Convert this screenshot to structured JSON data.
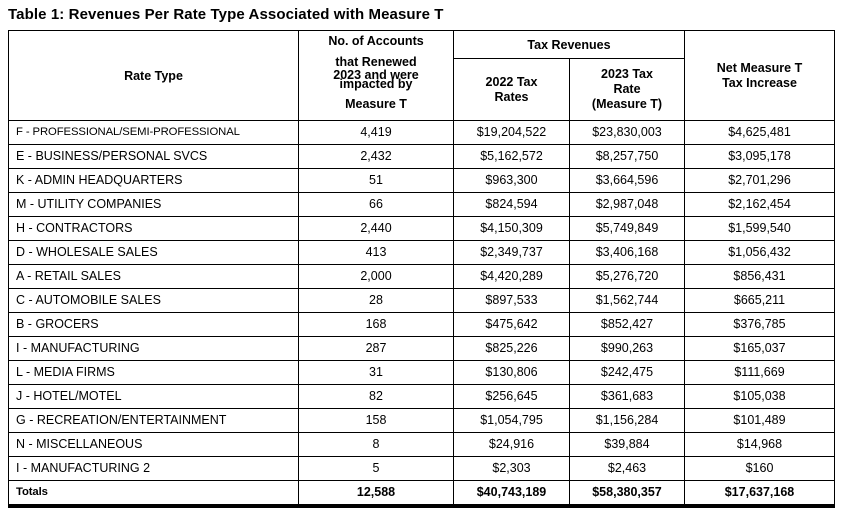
{
  "title": "Table 1: Revenues Per Rate Type Associated with Measure T",
  "colors": {
    "background": "#ffffff",
    "text": "#000000",
    "border": "#000000"
  },
  "table": {
    "headers": {
      "rate_type": "Rate Type",
      "accounts_lines": [
        "No. of Accounts",
        "that Renewed",
        "2023 and were",
        "impacted by",
        "Measure T"
      ],
      "tax_revenues_group": "Tax Revenues",
      "tax_2022_lines": [
        "2022 Tax",
        "Rates"
      ],
      "tax_2023_lines": [
        "2023 Tax",
        "Rate",
        "(Measure T)"
      ],
      "net_increase_lines": [
        "Net Measure T",
        "Tax Increase"
      ]
    },
    "rows": [
      {
        "rate_type": "F - PROFESSIONAL/SEMI-PROFESSIONAL",
        "accounts": "4,419",
        "tax_2022": "$19,204,522",
        "tax_2023": "$23,830,003",
        "net_increase": "$4,625,481"
      },
      {
        "rate_type": "E - BUSINESS/PERSONAL SVCS",
        "accounts": "2,432",
        "tax_2022": "$5,162,572",
        "tax_2023": "$8,257,750",
        "net_increase": "$3,095,178"
      },
      {
        "rate_type": "K - ADMIN HEADQUARTERS",
        "accounts": "51",
        "tax_2022": "$963,300",
        "tax_2023": "$3,664,596",
        "net_increase": "$2,701,296"
      },
      {
        "rate_type": "M - UTILITY COMPANIES",
        "accounts": "66",
        "tax_2022": "$824,594",
        "tax_2023": "$2,987,048",
        "net_increase": "$2,162,454"
      },
      {
        "rate_type": "H - CONTRACTORS",
        "accounts": "2,440",
        "tax_2022": "$4,150,309",
        "tax_2023": "$5,749,849",
        "net_increase": "$1,599,540"
      },
      {
        "rate_type": "D - WHOLESALE SALES",
        "accounts": "413",
        "tax_2022": "$2,349,737",
        "tax_2023": "$3,406,168",
        "net_increase": "$1,056,432"
      },
      {
        "rate_type": "A - RETAIL SALES",
        "accounts": "2,000",
        "tax_2022": "$4,420,289",
        "tax_2023": "$5,276,720",
        "net_increase": "$856,431"
      },
      {
        "rate_type": "C - AUTOMOBILE SALES",
        "accounts": "28",
        "tax_2022": "$897,533",
        "tax_2023": "$1,562,744",
        "net_increase": "$665,211"
      },
      {
        "rate_type": "B - GROCERS",
        "accounts": "168",
        "tax_2022": "$475,642",
        "tax_2023": "$852,427",
        "net_increase": "$376,785"
      },
      {
        "rate_type": "I - MANUFACTURING",
        "accounts": "287",
        "tax_2022": "$825,226",
        "tax_2023": "$990,263",
        "net_increase": "$165,037"
      },
      {
        "rate_type": "L - MEDIA FIRMS",
        "accounts": "31",
        "tax_2022": "$130,806",
        "tax_2023": "$242,475",
        "net_increase": "$111,669"
      },
      {
        "rate_type": "J - HOTEL/MOTEL",
        "accounts": "82",
        "tax_2022": "$256,645",
        "tax_2023": "$361,683",
        "net_increase": "$105,038"
      },
      {
        "rate_type": "G - RECREATION/ENTERTAINMENT",
        "accounts": "158",
        "tax_2022": "$1,054,795",
        "tax_2023": "$1,156,284",
        "net_increase": "$101,489"
      },
      {
        "rate_type": "N - MISCELLANEOUS",
        "accounts": "8",
        "tax_2022": "$24,916",
        "tax_2023": "$39,884",
        "net_increase": "$14,968"
      },
      {
        "rate_type": "I - MANUFACTURING 2",
        "accounts": "5",
        "tax_2022": "$2,303",
        "tax_2023": "$2,463",
        "net_increase": "$160"
      }
    ],
    "totals": {
      "label": "Totals",
      "accounts": "12,588",
      "tax_2022": "$40,743,189",
      "tax_2023": "$58,380,357",
      "net_increase": "$17,637,168"
    }
  }
}
